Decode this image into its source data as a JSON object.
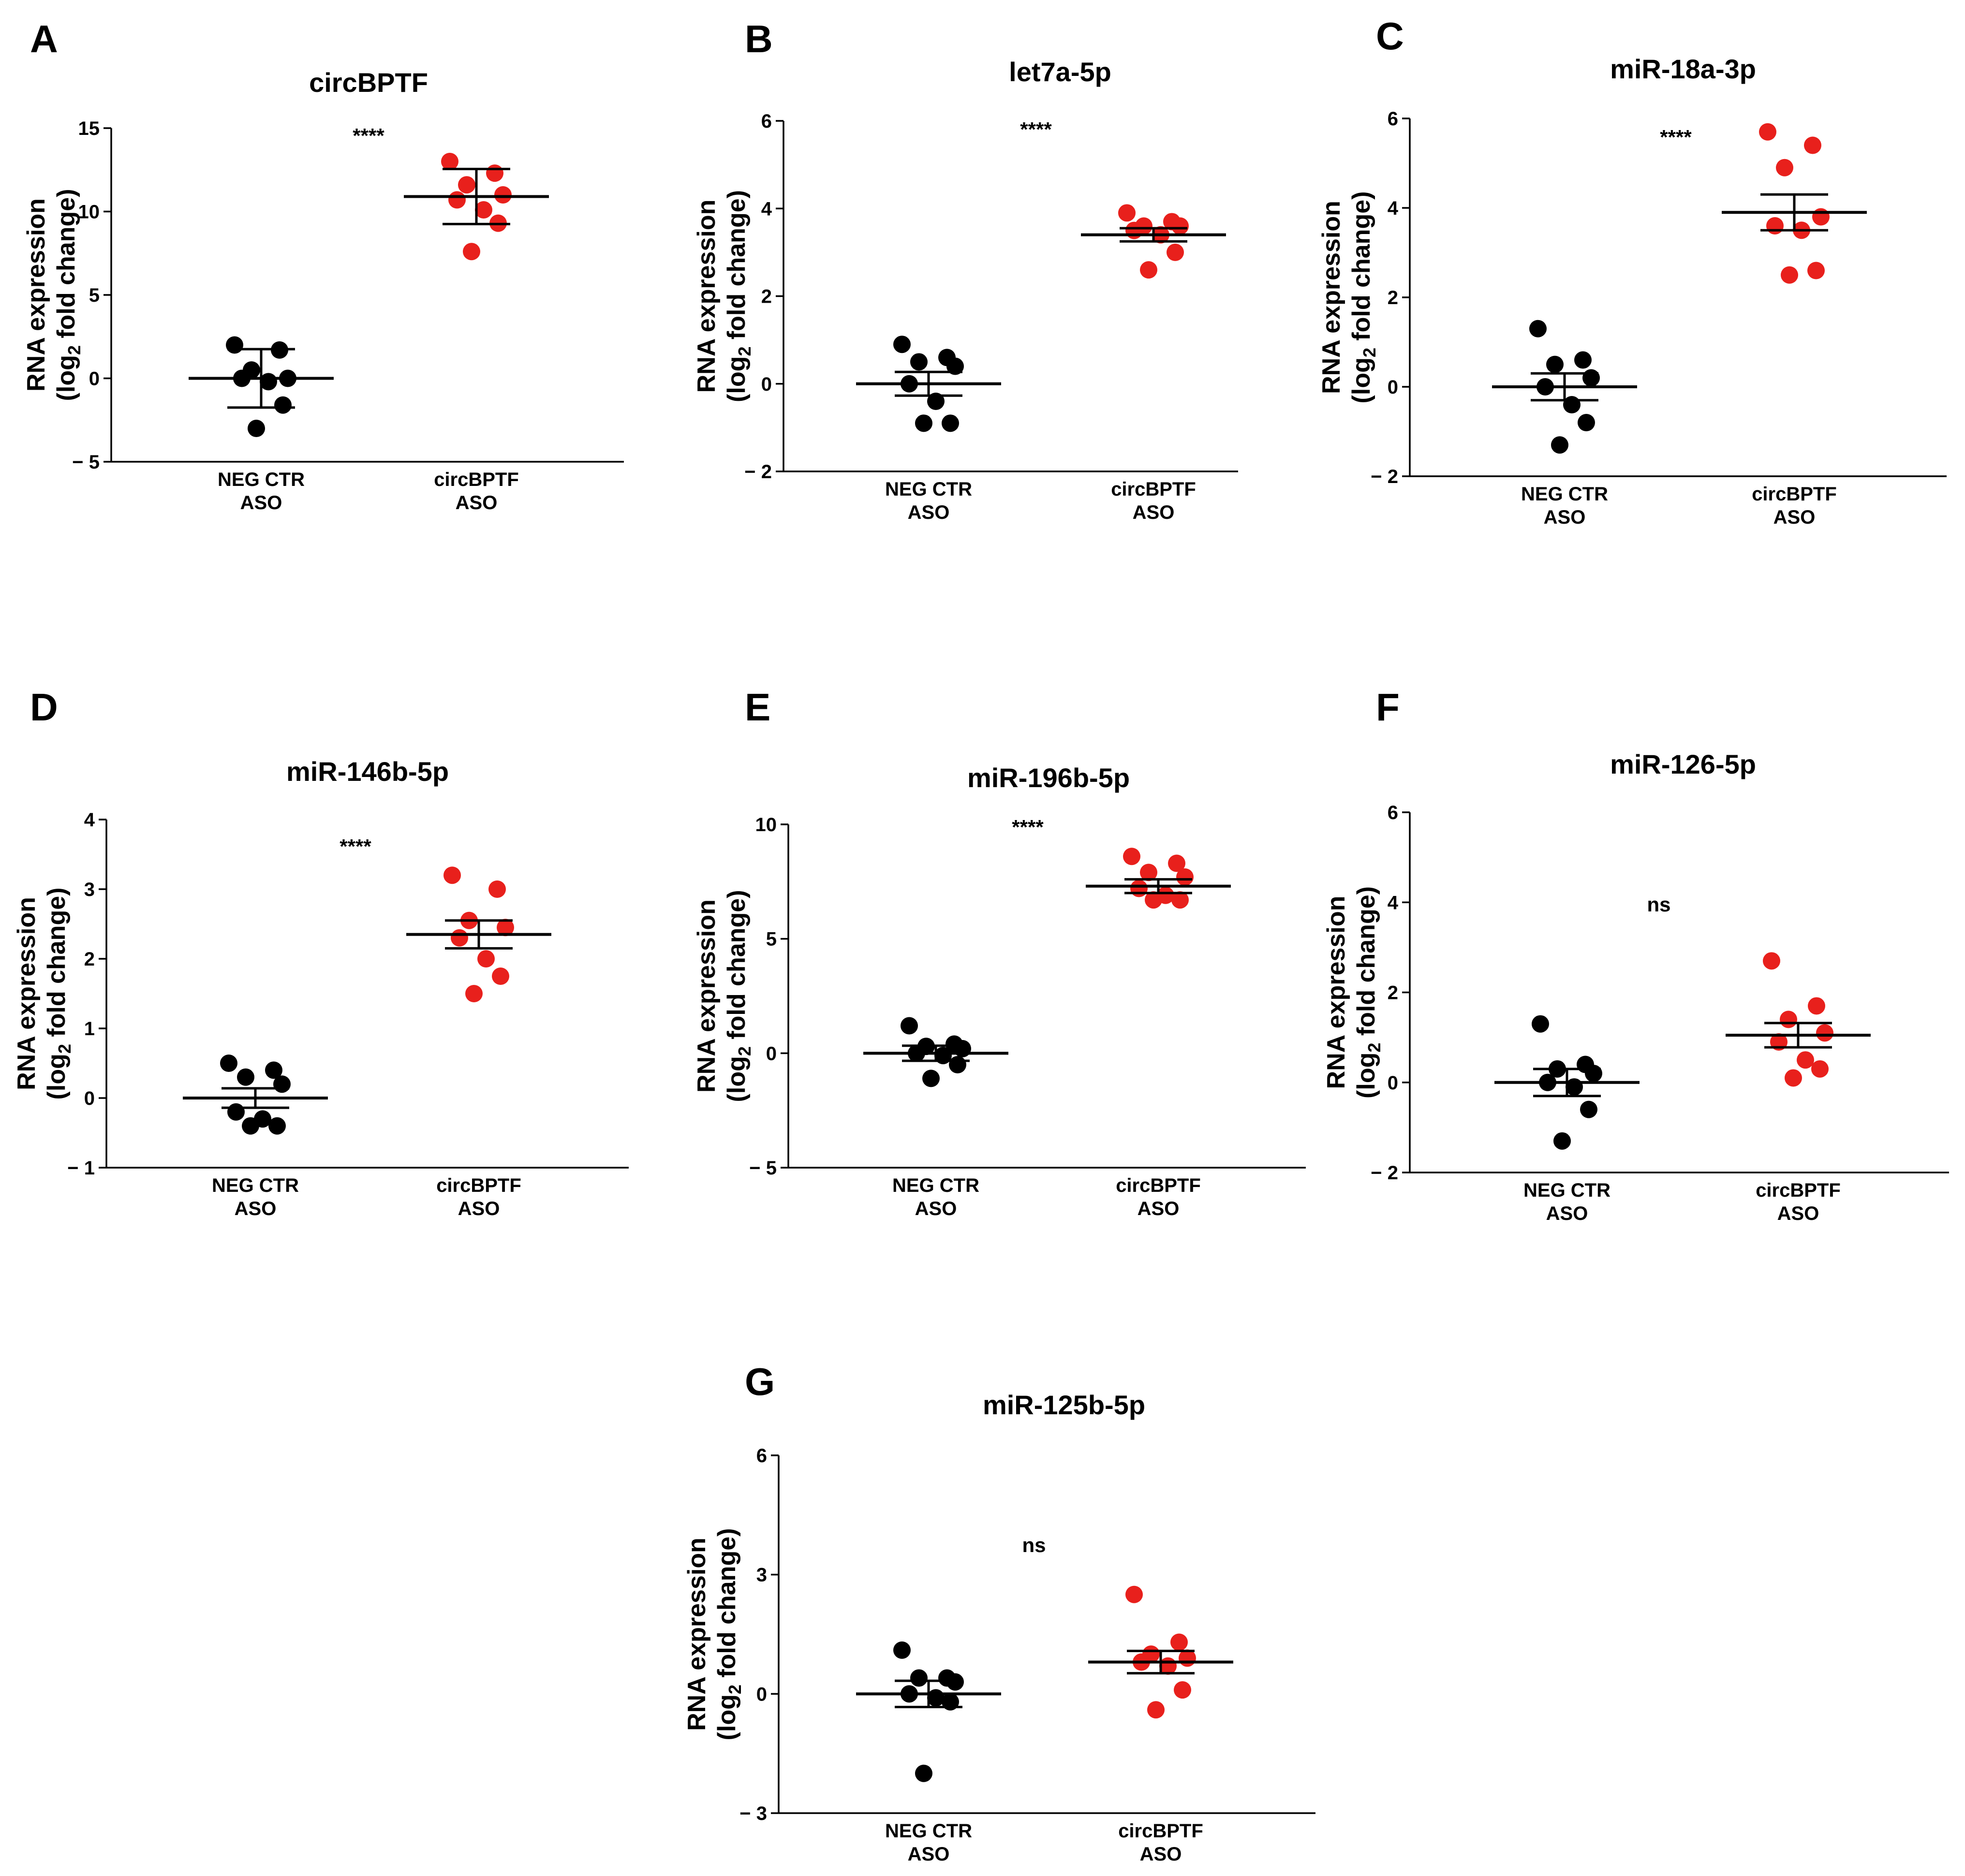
{
  "figure": {
    "y_label_line1": "RNA expression",
    "y_label_line2_pre": "(log",
    "y_label_line2_sub": "2",
    "y_label_line2_post": " fold change)"
  },
  "colors": {
    "control": "#000000",
    "treated": "#e8201c"
  },
  "chart_data": [
    {
      "letter": "A",
      "type": "scatter",
      "title": "circBPTF",
      "ylim": [
        -5,
        15
      ],
      "yticks": [
        -5,
        0,
        5,
        10,
        15
      ],
      "categories": [
        {
          "line1": "NEG CTR",
          "line2": "ASO"
        },
        {
          "line1": "circBPTF",
          "line2": "ASO"
        }
      ],
      "significance": "****",
      "series": [
        {
          "name": "NEG CTR ASO",
          "mean": 0.0,
          "error": 1.75,
          "values": [
            2.0,
            1.7,
            0.5,
            0.0,
            0.0,
            -0.2,
            -1.6,
            -3.0
          ]
        },
        {
          "name": "circBPTF ASO",
          "mean": 10.9,
          "error": 1.65,
          "values": [
            13.0,
            12.3,
            11.6,
            11.0,
            10.7,
            10.1,
            9.3,
            7.6
          ]
        }
      ]
    },
    {
      "letter": "B",
      "type": "scatter",
      "title": "let7a-5p",
      "ylim": [
        -2,
        6
      ],
      "yticks": [
        -2,
        0,
        2,
        4,
        6
      ],
      "categories": [
        {
          "line1": "NEG CTR",
          "line2": "ASO"
        },
        {
          "line1": "circBPTF",
          "line2": "ASO"
        }
      ],
      "significance": "****",
      "series": [
        {
          "name": "NEG CTR ASO",
          "mean": 0.0,
          "error": 0.27,
          "values": [
            0.9,
            0.6,
            0.5,
            0.4,
            0.0,
            -0.4,
            -0.9,
            -0.9
          ]
        },
        {
          "name": "circBPTF ASO",
          "mean": 3.4,
          "error": 0.15,
          "values": [
            3.9,
            3.7,
            3.6,
            3.6,
            3.5,
            3.4,
            3.0,
            2.6
          ]
        }
      ]
    },
    {
      "letter": "C",
      "type": "scatter",
      "title": "miR-18a-3p",
      "ylim": [
        -2,
        6
      ],
      "yticks": [
        -2,
        0,
        2,
        4,
        6
      ],
      "categories": [
        {
          "line1": "NEG CTR",
          "line2": "ASO"
        },
        {
          "line1": "circBPTF",
          "line2": "ASO"
        }
      ],
      "significance": "****",
      "series": [
        {
          "name": "NEG CTR ASO",
          "mean": 0.0,
          "error": 0.3,
          "values": [
            1.3,
            0.6,
            0.5,
            0.2,
            0.0,
            -0.4,
            -0.8,
            -1.3
          ]
        },
        {
          "name": "circBPTF ASO",
          "mean": 3.9,
          "error": 0.4,
          "values": [
            5.7,
            5.4,
            4.9,
            3.8,
            3.6,
            3.5,
            2.6,
            2.5
          ]
        }
      ]
    },
    {
      "letter": "D",
      "type": "scatter",
      "title": "miR-146b-5p",
      "ylim": [
        -1,
        4
      ],
      "yticks": [
        -1,
        0,
        1,
        2,
        3,
        4
      ],
      "categories": [
        {
          "line1": "NEG CTR",
          "line2": "ASO"
        },
        {
          "line1": "circBPTF",
          "line2": "ASO"
        }
      ],
      "significance": "****",
      "series": [
        {
          "name": "NEG CTR ASO",
          "mean": 0.0,
          "error": 0.14,
          "values": [
            0.5,
            0.4,
            0.3,
            0.2,
            -0.2,
            -0.3,
            -0.4,
            -0.4
          ]
        },
        {
          "name": "circBPTF ASO",
          "mean": 2.35,
          "error": 0.2,
          "values": [
            3.2,
            3.0,
            2.55,
            2.45,
            2.3,
            2.0,
            1.75,
            1.5
          ]
        }
      ]
    },
    {
      "letter": "E",
      "type": "scatter",
      "title": "miR-196b-5p",
      "ylim": [
        -5,
        10
      ],
      "yticks": [
        -5,
        0,
        5,
        10
      ],
      "categories": [
        {
          "line1": "NEG CTR",
          "line2": "ASO"
        },
        {
          "line1": "circBPTF",
          "line2": "ASO"
        }
      ],
      "significance": "****",
      "series": [
        {
          "name": "NEG CTR ASO",
          "mean": 0.0,
          "error": 0.33,
          "values": [
            1.2,
            0.4,
            0.3,
            0.2,
            0.0,
            -0.1,
            -0.5,
            -1.1
          ]
        },
        {
          "name": "circBPTF ASO",
          "mean": 7.3,
          "error": 0.3,
          "values": [
            8.6,
            8.3,
            7.9,
            7.7,
            7.2,
            6.9,
            6.7,
            6.7
          ]
        }
      ]
    },
    {
      "letter": "F",
      "type": "scatter",
      "title": "miR-126-5p",
      "ylim": [
        -2,
        6
      ],
      "yticks": [
        -2,
        0,
        2,
        4,
        6
      ],
      "categories": [
        {
          "line1": "NEG CTR",
          "line2": "ASO"
        },
        {
          "line1": "circBPTF",
          "line2": "ASO"
        }
      ],
      "significance": "ns",
      "series": [
        {
          "name": "NEG CTR ASO",
          "mean": 0.0,
          "error": 0.3,
          "values": [
            1.3,
            0.4,
            0.3,
            0.2,
            0.0,
            -0.1,
            -0.6,
            -1.3
          ]
        },
        {
          "name": "circBPTF ASO",
          "mean": 1.05,
          "error": 0.27,
          "values": [
            2.7,
            1.7,
            1.4,
            1.1,
            0.9,
            0.5,
            0.3,
            0.1
          ]
        }
      ]
    },
    {
      "letter": "G",
      "type": "scatter",
      "title": "miR-125b-5p",
      "ylim": [
        -3,
        6
      ],
      "yticks": [
        -3,
        0,
        3,
        6
      ],
      "categories": [
        {
          "line1": "NEG CTR",
          "line2": "ASO"
        },
        {
          "line1": "circBPTF",
          "line2": "ASO"
        }
      ],
      "significance": "ns",
      "series": [
        {
          "name": "NEG CTR ASO",
          "mean": 0.0,
          "error": 0.33,
          "values": [
            1.1,
            0.4,
            0.4,
            0.3,
            0.0,
            -0.1,
            -0.2,
            -2.0
          ]
        },
        {
          "name": "circBPTF ASO",
          "mean": 0.8,
          "error": 0.28,
          "values": [
            2.5,
            1.3,
            1.0,
            0.9,
            0.8,
            0.7,
            0.1,
            -0.4
          ]
        }
      ]
    }
  ]
}
